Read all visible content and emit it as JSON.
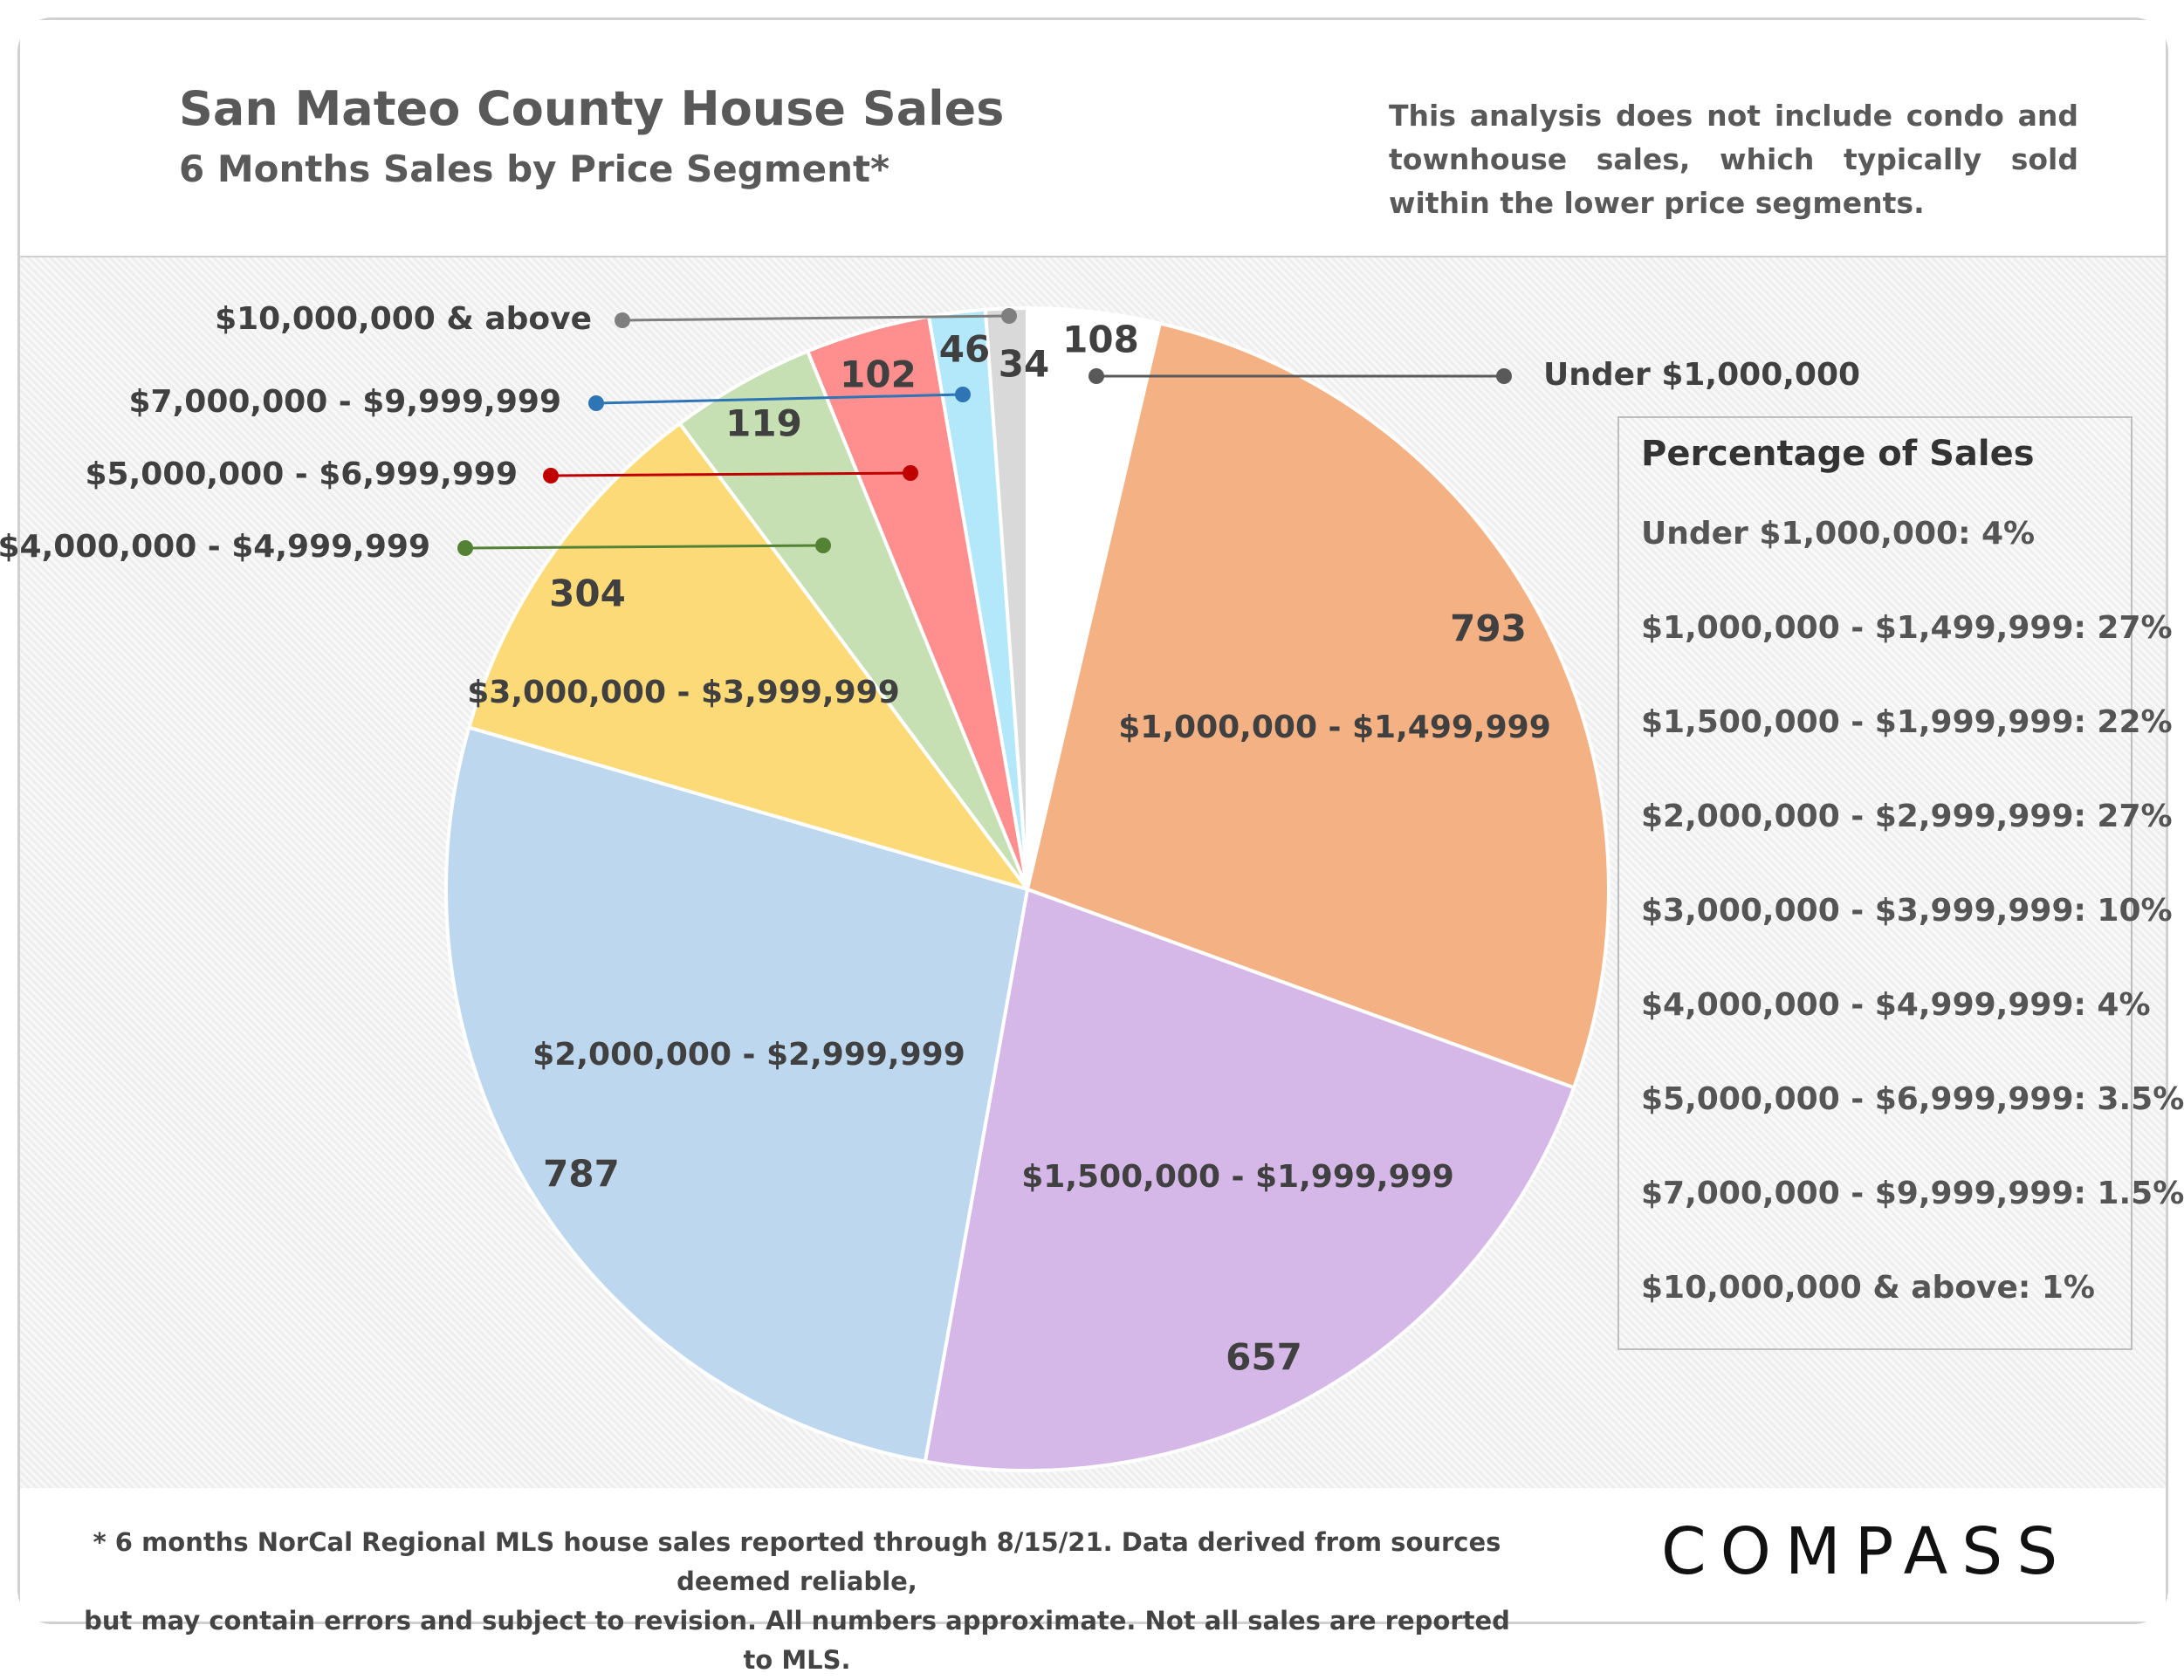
{
  "header": {
    "title": "San Mateo County House Sales",
    "subtitle": "6 Months Sales by Price Segment*",
    "note": "This analysis does not include condo and townhouse sales, which typically sold within the lower price segments."
  },
  "chart_data": {
    "type": "pie",
    "title": "San Mateo County House Sales",
    "subtitle": "6 Months Sales by Price Segment*",
    "start": "12 o'clock, clockwise",
    "categories": [
      "Under $1,000,000",
      "$1,000,000 - $1,499,999",
      "$1,500,000 - $1,999,999",
      "$2,000,000 - $2,999,999",
      "$3,000,000 - $3,999,999",
      "$4,000,000 - $4,999,999",
      "$5,000,000 - $6,999,999",
      "$7,000,000 - $9,999,999",
      "$10,000,000 & above"
    ],
    "values": [
      108,
      793,
      657,
      787,
      304,
      119,
      102,
      46,
      34
    ],
    "value_labels": [
      "108",
      "793",
      "657",
      "787",
      "304",
      "119",
      "102",
      "46",
      "34"
    ],
    "slice_colors": [
      "#ffffff",
      "#f4b183",
      "#d5b8e8",
      "#bdd7ee",
      "#fdda78",
      "#c6e0b4",
      "#ff8f8f",
      "#b3e8fb",
      "#d9d9d9"
    ],
    "leader_colors": {
      "Under $1,000,000": "#595959",
      "$4,000,000 - $4,999,999": "#548235",
      "$5,000,000 - $6,999,999": "#c00000",
      "$7,000,000 - $9,999,999": "#2e75b6",
      "$10,000,000 & above": "#7f7f7f"
    },
    "legend": {
      "title": "Percentage of Sales",
      "placement": "right",
      "entries": [
        "Under $1,000,000: 4%",
        "$1,000,000 - $1,499,999: 27%",
        "$1,500,000 - $1,999,999: 22%",
        "$2,000,000 - $2,999,999: 27%",
        "$3,000,000 - $3,999,999: 10%",
        "$4,000,000 - $4,999,999: 4%",
        "$5,000,000 - $6,999,999: 3.5%",
        "$7,000,000 - $9,999,999:  1.5%",
        "$10,000,000 & above: 1%"
      ]
    }
  },
  "footer": {
    "footnote_line1": "* 6 months NorCal Regional MLS house sales reported through 8/15/21. Data derived from sources deemed reliable,",
    "footnote_line2": "but may contain errors and subject to revision. All numbers approximate. Not all sales are reported to MLS.",
    "logo": "COMPASS"
  }
}
